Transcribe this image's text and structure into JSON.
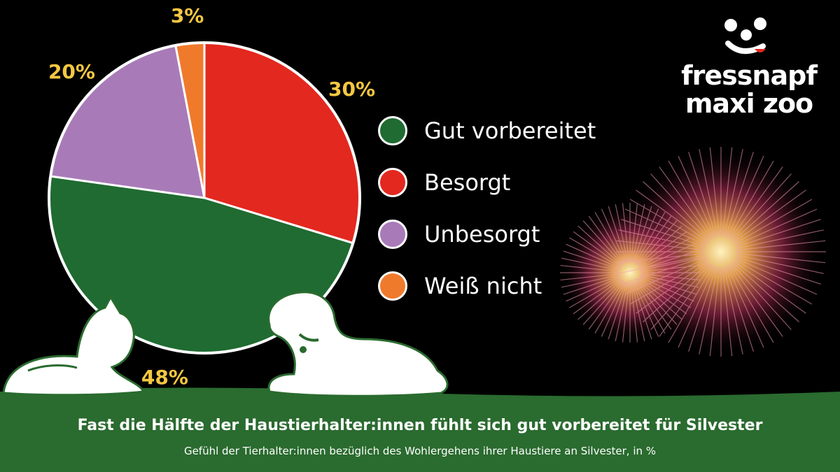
{
  "colors": {
    "gut": "#1f6b31",
    "besorgt": "#e3281f",
    "unbesorgt": "#a87bb8",
    "weiss_nicht": "#f07a2c",
    "label": "#f5c842",
    "footer": "#2a6b2f"
  },
  "chart_data": {
    "type": "pie",
    "slices": [
      {
        "name": "Besorgt",
        "value": 30,
        "label": "30%",
        "color": "#e3281f"
      },
      {
        "name": "Gut vorbereitet",
        "value": 48,
        "label": "48%",
        "color": "#1f6b31"
      },
      {
        "name": "Unbesorgt",
        "value": 20,
        "label": "20%",
        "color": "#a87bb8"
      },
      {
        "name": "Weiß nicht",
        "value": 3,
        "label": "3%",
        "color": "#f07a2c"
      }
    ]
  },
  "legend": [
    {
      "label": "Gut vorbereitet",
      "color": "#1f6b31"
    },
    {
      "label": "Besorgt",
      "color": "#e3281f"
    },
    {
      "label": "Unbesorgt",
      "color": "#a87bb8"
    },
    {
      "label": "Weiß nicht",
      "color": "#f07a2c"
    }
  ],
  "logo": {
    "line1": "fressnapf",
    "line2": "maxi zoo"
  },
  "footer": {
    "title": "Fast die Hälfte der Haustierhalter:innen fühlt sich gut vorbereitet für Silvester",
    "subtitle": "Gefühl der Tierhalter:innen bezüglich des Wohlergehens ihrer Haustiere an Silvester, in %"
  }
}
